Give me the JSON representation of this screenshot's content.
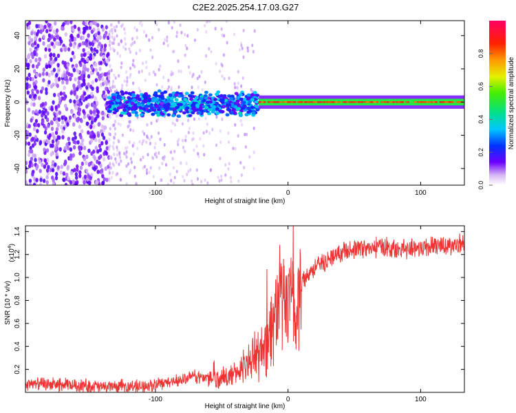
{
  "title": "C2E2.2025.254.17.03.G27",
  "chart_data": [
    {
      "type": "heatmap",
      "xlabel": "Height of straight line (km)",
      "ylabel": "Frequency (Hz)",
      "xlim": [
        -198,
        133
      ],
      "ylim": [
        -50,
        49
      ],
      "xticks": [
        -100,
        0,
        100
      ],
      "yticks": [
        -40,
        -20,
        0,
        20,
        40
      ],
      "colorbar": {
        "label": "Normalized spectral amplitude",
        "range": [
          0.0,
          1.0
        ],
        "ticks": [
          0.0,
          0.2,
          0.4,
          0.6,
          0.8
        ],
        "tick_labels": [
          "0.0",
          "0.2",
          "0.4",
          "0.6",
          "0.8"
        ]
      },
      "description_regions": [
        {
          "x": [
            -198,
            -135
          ],
          "freq": [
            -50,
            49
          ],
          "amplitude": 0.08
        },
        {
          "x": [
            -135,
            -22
          ],
          "freq": [
            -8,
            8
          ],
          "amplitude": 0.25
        },
        {
          "x": [
            -22,
            133
          ],
          "freq": [
            -2,
            2
          ],
          "amplitude": 0.75
        }
      ]
    },
    {
      "type": "line",
      "xlabel": "Height of straight line (km)",
      "ylabel": "SNR (10 * v/v)",
      "yscale_label": "(x10",
      "yscale_exp": "4",
      "xlim": [
        -198,
        133
      ],
      "ylim": [
        0.0,
        1.45
      ],
      "xticks": [
        -100,
        0,
        100
      ],
      "yticks": [
        0.2,
        0.4,
        0.6,
        0.8,
        1.0,
        1.2,
        1.4
      ],
      "ytick_labels": [
        "0.2",
        "0.4",
        "0.6",
        "0.8",
        "1.0",
        "1.2",
        "1.4"
      ],
      "color": "#ee3333",
      "series": [
        {
          "name": "SNR",
          "x": [
            -198,
            -180,
            -160,
            -140,
            -120,
            -100,
            -85,
            -70,
            -55,
            -45,
            -35,
            -28,
            -22,
            -18,
            -14,
            -10,
            -6,
            -3,
            0,
            3,
            6,
            9,
            12,
            16,
            20,
            25,
            30,
            40,
            50,
            60,
            70,
            80,
            90,
            100,
            110,
            120,
            133
          ],
          "y": [
            0.07,
            0.07,
            0.06,
            0.05,
            0.05,
            0.06,
            0.1,
            0.14,
            0.12,
            0.13,
            0.2,
            0.28,
            0.34,
            0.4,
            0.5,
            0.65,
            0.8,
            0.82,
            0.7,
            0.85,
            0.65,
            0.88,
            1.0,
            1.05,
            1.08,
            1.12,
            1.16,
            1.22,
            1.25,
            1.25,
            1.27,
            1.24,
            1.25,
            1.26,
            1.27,
            1.28,
            1.3
          ]
        }
      ]
    }
  ]
}
